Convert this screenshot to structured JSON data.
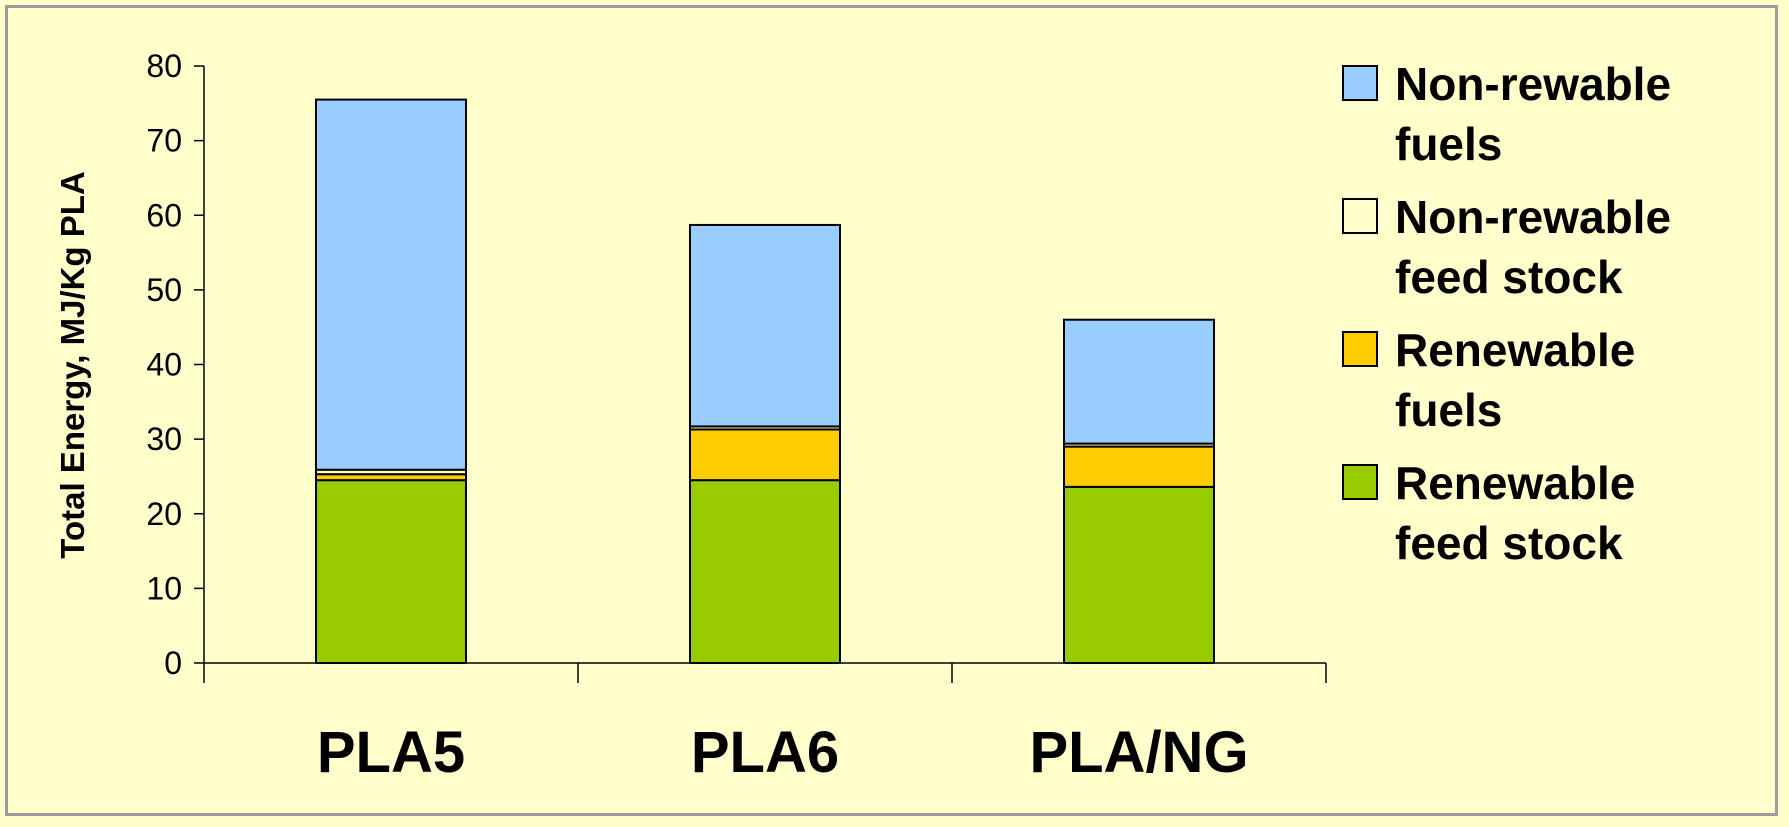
{
  "chart_data": {
    "type": "bar",
    "stacked": true,
    "categories": [
      "PLA5",
      "PLA6",
      "PLA/NG"
    ],
    "ylabel": "Total Energy, MJ/Kg PLA",
    "xlabel": "",
    "ylim": [
      0,
      80
    ],
    "yticks": [
      0,
      10,
      20,
      30,
      40,
      50,
      60,
      70,
      80
    ],
    "grid": false,
    "legend_position": "right",
    "series": [
      {
        "name": "Renewable feed stock",
        "legend_lines": [
          "Renewable",
          "feed stock"
        ],
        "color": "#99cc00",
        "values": [
          24.5,
          24.5,
          23.6
        ]
      },
      {
        "name": "Renewable fuels",
        "legend_lines": [
          "Renewable",
          "fuels"
        ],
        "color": "#ffcc00",
        "values": [
          0.8,
          6.8,
          5.4
        ]
      },
      {
        "name": "Non-rewable feed stock",
        "legend_lines": [
          "Non-rewable",
          "feed stock"
        ],
        "color": "#ffffcc",
        "values": [
          0.6,
          0.4,
          0.4
        ]
      },
      {
        "name": "Non-rewable fuels",
        "legend_lines": [
          "Non-rewable",
          "fuels"
        ],
        "color": "#99ccff",
        "values": [
          49.6,
          27.0,
          16.6
        ]
      }
    ]
  }
}
